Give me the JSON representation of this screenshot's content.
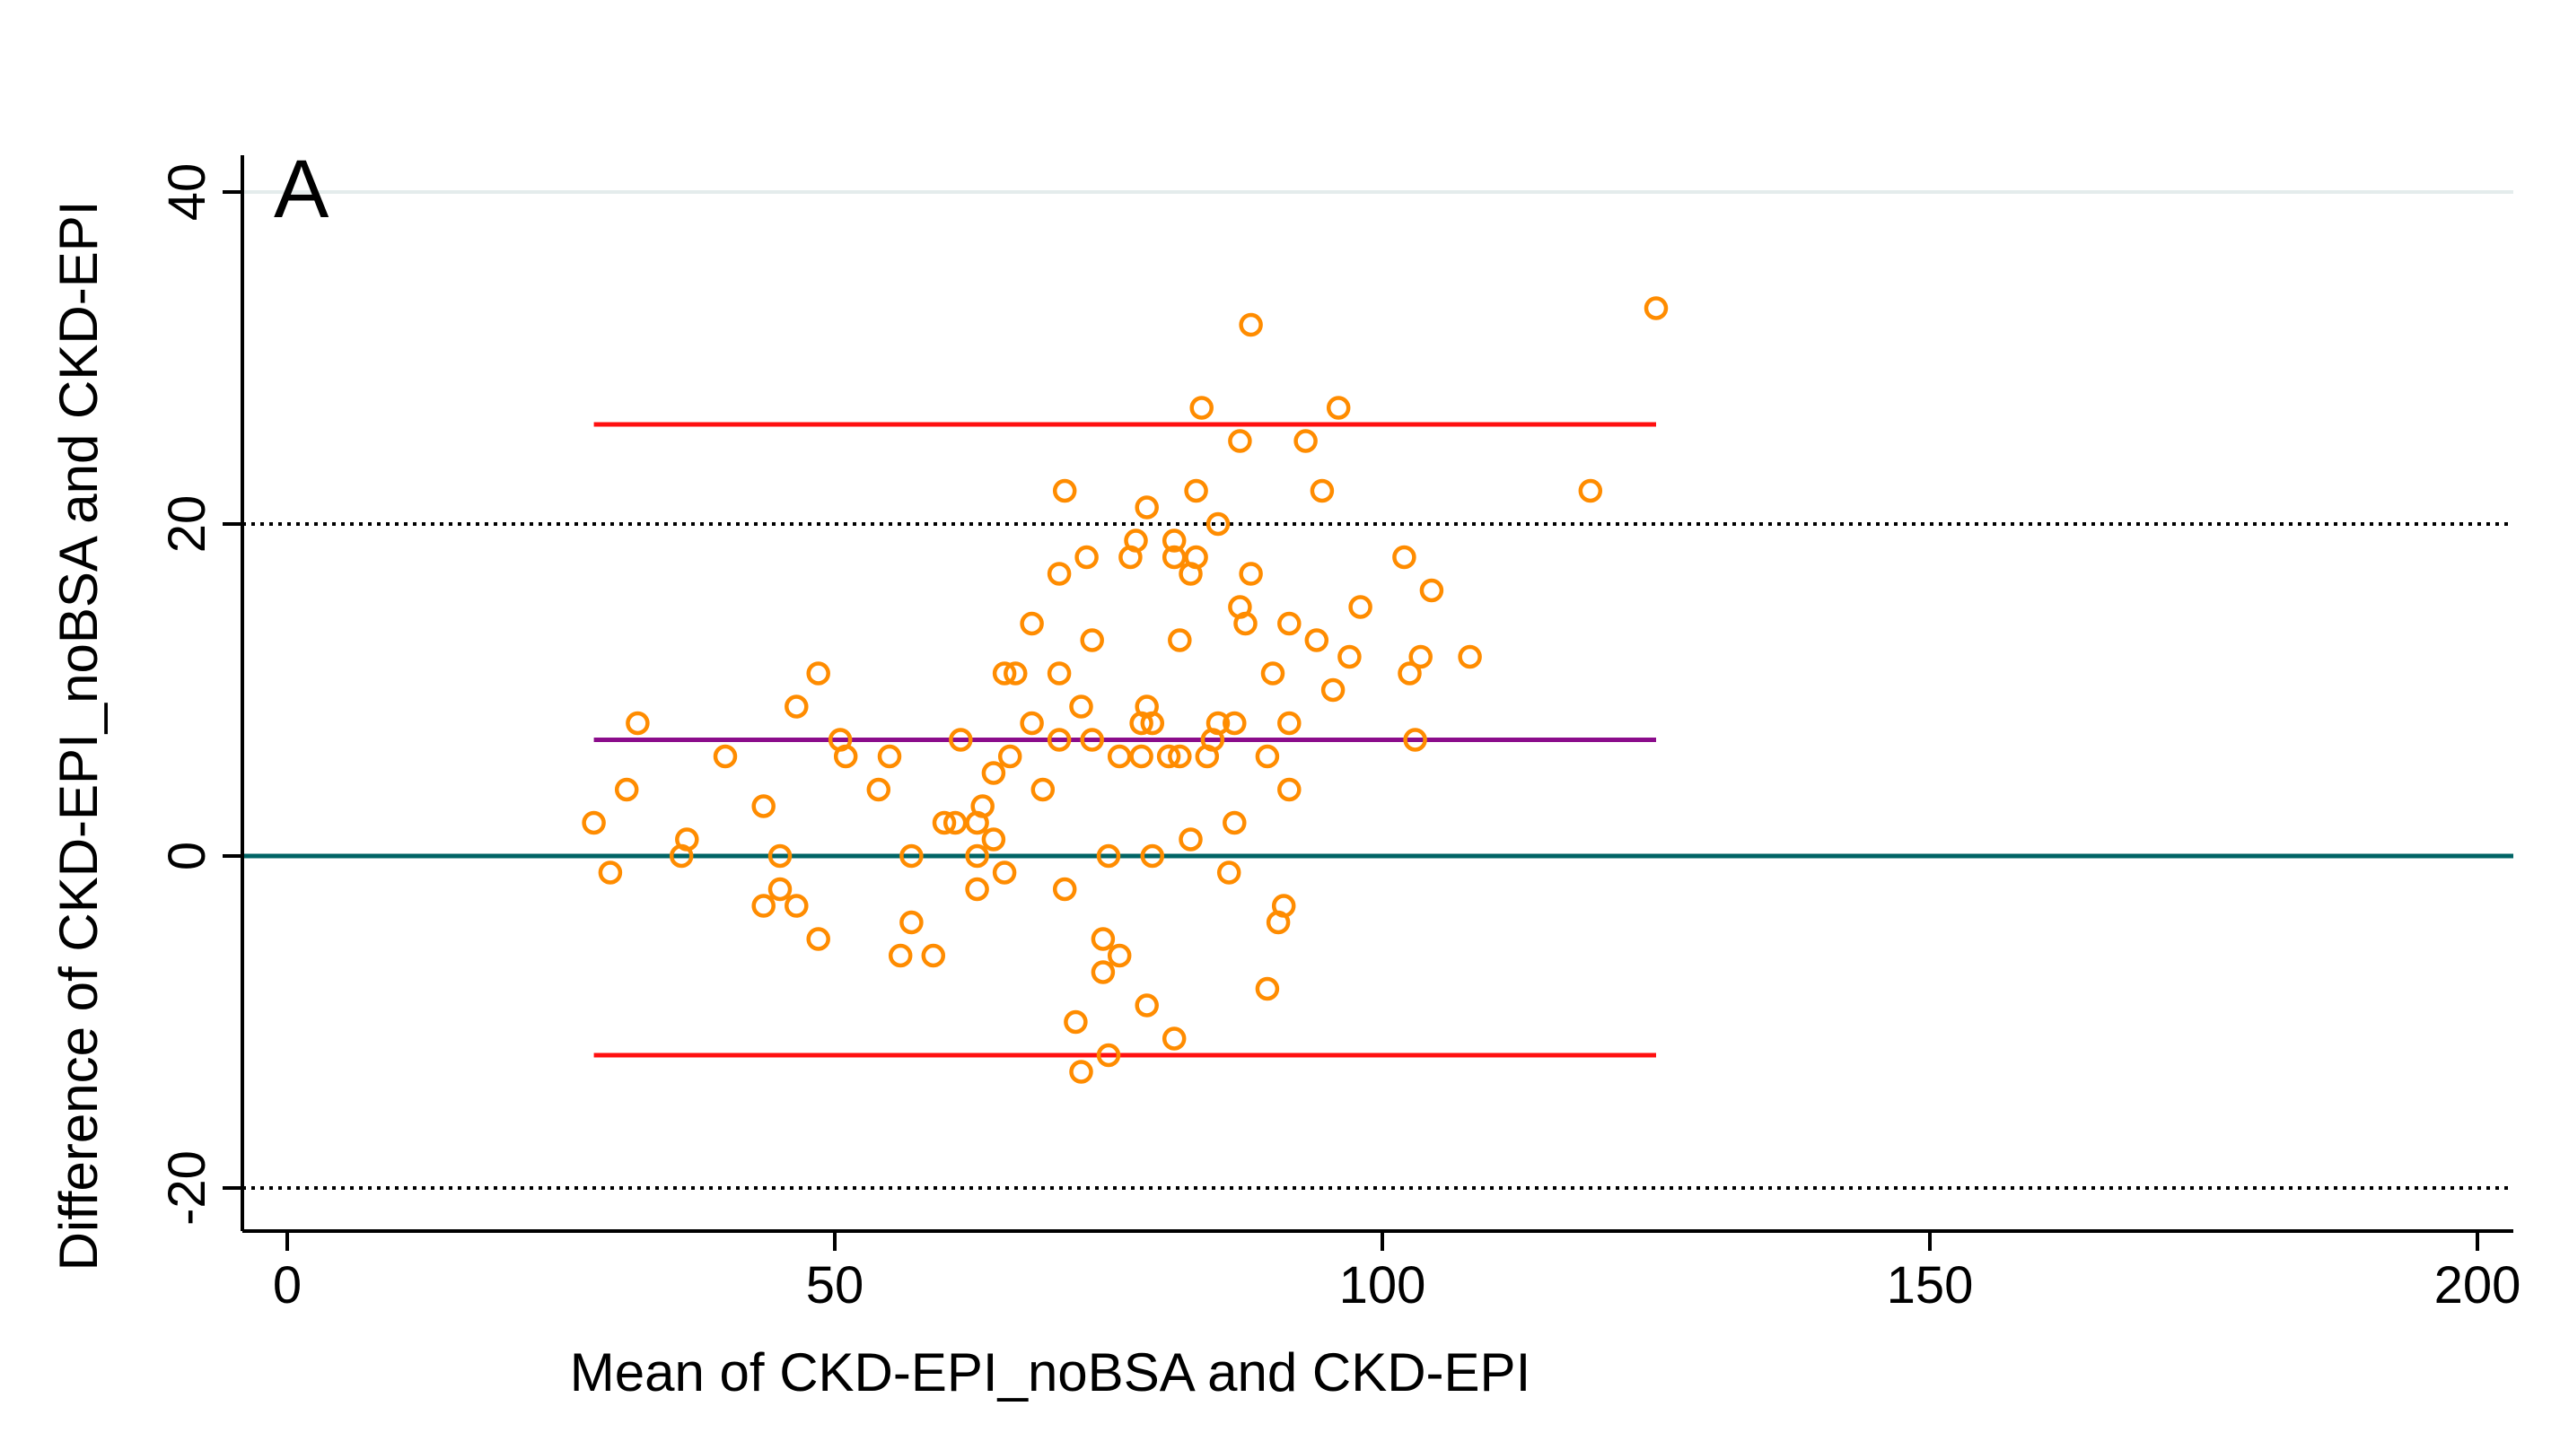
{
  "chart_data": {
    "type": "scatter",
    "panel_label": "A",
    "title": "",
    "xlabel": "Mean of CKD-EPI_noBSA and CKD-EPI",
    "ylabel": "Difference of CKD-EPI_noBSA and CKD-EPI",
    "xlim": [
      0,
      205
    ],
    "ylim": [
      -22,
      42
    ],
    "x_ticks": [
      0,
      50,
      100,
      150,
      200
    ],
    "y_ticks": [
      -20,
      0,
      20,
      40
    ],
    "x_tick_labels": [
      "0",
      "50",
      "100",
      "150",
      "200"
    ],
    "y_tick_labels": [
      "-20",
      "0",
      "20",
      "40"
    ],
    "grid": "horizontal at 40",
    "colors": {
      "points": "#ff8c00",
      "limits_of_agreement": "#ff1010",
      "mean_difference": "#8b0c8b",
      "zero_line": "#006465",
      "reference": "#000000",
      "grid": "#e4ecec"
    },
    "reference_lines": [
      {
        "name": "upper-limit-of-agreement",
        "y": 26,
        "x_range": [
          28,
          125
        ],
        "style": "solid",
        "color_key": "limits_of_agreement"
      },
      {
        "name": "mean-difference",
        "y": 7,
        "x_range": [
          28,
          125
        ],
        "style": "solid",
        "color_key": "mean_difference"
      },
      {
        "name": "lower-limit-of-agreement",
        "y": -12,
        "x_range": [
          28,
          125
        ],
        "style": "solid",
        "color_key": "limits_of_agreement"
      },
      {
        "name": "zero-line",
        "y": 0,
        "x_range": [
          0,
          205
        ],
        "style": "solid",
        "color_key": "zero_line"
      },
      {
        "name": "upper-reference-line",
        "y": 20,
        "x_range": [
          0,
          205
        ],
        "style": "dotted",
        "color_key": "reference"
      },
      {
        "name": "lower-reference-line",
        "y": -20,
        "x_range": [
          0,
          205
        ],
        "style": "dotted",
        "color_key": "reference"
      }
    ],
    "series": [
      {
        "name": "observations",
        "marker": "hollow-circle",
        "points": [
          [
            28,
            2
          ],
          [
            29.5,
            -1
          ],
          [
            31,
            4
          ],
          [
            32,
            8
          ],
          [
            36,
            0
          ],
          [
            36.5,
            1
          ],
          [
            40,
            6
          ],
          [
            43.5,
            -3
          ],
          [
            43.5,
            3
          ],
          [
            45,
            0
          ],
          [
            45,
            -2
          ],
          [
            46.5,
            9
          ],
          [
            46.5,
            -3
          ],
          [
            48.5,
            11
          ],
          [
            48.5,
            -5
          ],
          [
            50.5,
            7
          ],
          [
            51,
            6
          ],
          [
            54,
            4
          ],
          [
            55,
            6
          ],
          [
            56,
            -6
          ],
          [
            57,
            0
          ],
          [
            57,
            -4
          ],
          [
            59,
            -6
          ],
          [
            60,
            2
          ],
          [
            61,
            2
          ],
          [
            61.5,
            7
          ],
          [
            63,
            0
          ],
          [
            63,
            -2
          ],
          [
            63,
            2
          ],
          [
            63.5,
            3
          ],
          [
            64.5,
            1
          ],
          [
            64.5,
            5
          ],
          [
            65.5,
            11
          ],
          [
            65.5,
            -1
          ],
          [
            66,
            6
          ],
          [
            66.5,
            11
          ],
          [
            68,
            14
          ],
          [
            68,
            8
          ],
          [
            69,
            4
          ],
          [
            70.5,
            17
          ],
          [
            70.5,
            11
          ],
          [
            70.5,
            7
          ],
          [
            71,
            22
          ],
          [
            71,
            -2
          ],
          [
            72,
            -10
          ],
          [
            72.5,
            9
          ],
          [
            72.5,
            -13
          ],
          [
            73,
            18
          ],
          [
            73.5,
            13
          ],
          [
            73.5,
            7
          ],
          [
            74.5,
            -5
          ],
          [
            74.5,
            -7
          ],
          [
            75,
            0
          ],
          [
            75,
            -12
          ],
          [
            76,
            6
          ],
          [
            76,
            -6
          ],
          [
            77,
            18
          ],
          [
            77.5,
            19
          ],
          [
            78,
            8
          ],
          [
            78,
            6
          ],
          [
            78.5,
            21
          ],
          [
            78.5,
            9
          ],
          [
            78.5,
            -9
          ],
          [
            79,
            8
          ],
          [
            79,
            0
          ],
          [
            80.5,
            6
          ],
          [
            81,
            18
          ],
          [
            81,
            19
          ],
          [
            81,
            -11
          ],
          [
            81.5,
            13
          ],
          [
            81.5,
            6
          ],
          [
            82.5,
            17
          ],
          [
            82.5,
            1
          ],
          [
            83,
            22
          ],
          [
            83,
            18
          ],
          [
            83.5,
            27
          ],
          [
            84,
            6
          ],
          [
            84.5,
            7
          ],
          [
            85,
            20
          ],
          [
            85,
            8
          ],
          [
            86,
            -1
          ],
          [
            86.5,
            8
          ],
          [
            86.5,
            2
          ],
          [
            87,
            25
          ],
          [
            87,
            15
          ],
          [
            87.5,
            14
          ],
          [
            88,
            32
          ],
          [
            88,
            17
          ],
          [
            89.5,
            6
          ],
          [
            89.5,
            -8
          ],
          [
            90,
            11
          ],
          [
            90.5,
            -4
          ],
          [
            91,
            -3
          ],
          [
            91.5,
            14
          ],
          [
            91.5,
            8
          ],
          [
            91.5,
            4
          ],
          [
            93,
            25
          ],
          [
            94,
            13
          ],
          [
            94.5,
            22
          ],
          [
            95.5,
            10
          ],
          [
            96,
            27
          ],
          [
            97,
            12
          ],
          [
            98,
            15
          ],
          [
            102,
            18
          ],
          [
            102.5,
            11
          ],
          [
            103,
            7
          ],
          [
            103.5,
            12
          ],
          [
            104.5,
            16
          ],
          [
            108,
            12
          ],
          [
            119,
            22
          ],
          [
            125,
            33
          ]
        ]
      }
    ]
  }
}
